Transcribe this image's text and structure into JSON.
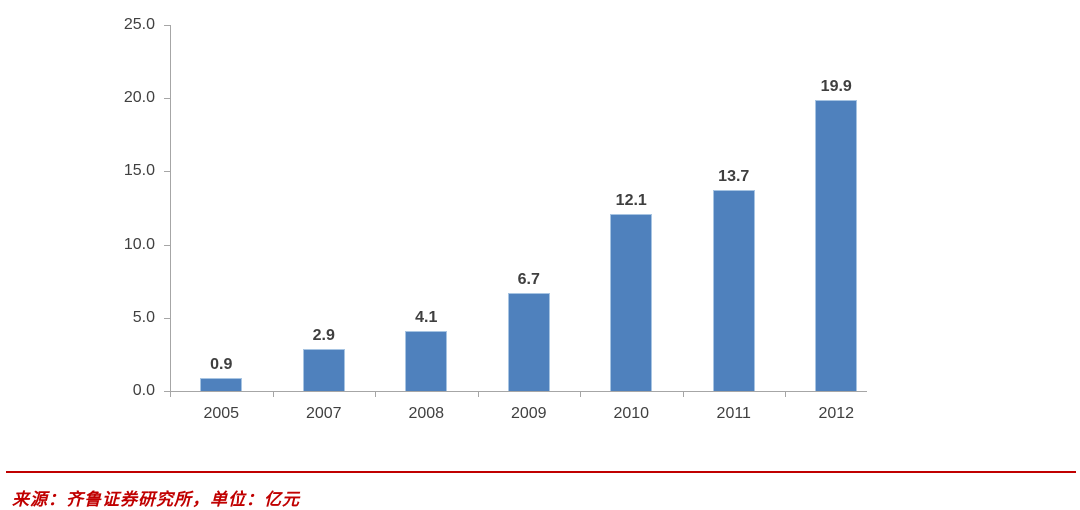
{
  "chart_data": {
    "type": "bar",
    "title": "",
    "xlabel": "",
    "ylabel": "",
    "categories": [
      "2005",
      "2007",
      "2008",
      "2009",
      "2010",
      "2011",
      "2012"
    ],
    "values": [
      0.9,
      2.9,
      4.1,
      6.7,
      12.1,
      13.7,
      19.9
    ],
    "data_labels": [
      "0.9",
      "2.9",
      "4.1",
      "6.7",
      "12.1",
      "13.7",
      "19.9"
    ],
    "ylim": [
      0,
      25
    ],
    "ytick_step": 5,
    "ytick_labels": [
      "0.0",
      "5.0",
      "10.0",
      "15.0",
      "20.0",
      "25.0"
    ],
    "grid": false,
    "legend": null,
    "bar_color": "#4F81BD",
    "bar_border_color": "#A7C4E2",
    "axis_color": "#A6A6A6",
    "label_color": "#404040"
  },
  "footer": {
    "separator_color": "#C00000",
    "source_text": "来源：齐鲁证券研究所，单位：亿元",
    "source_color": "#C00000"
  }
}
